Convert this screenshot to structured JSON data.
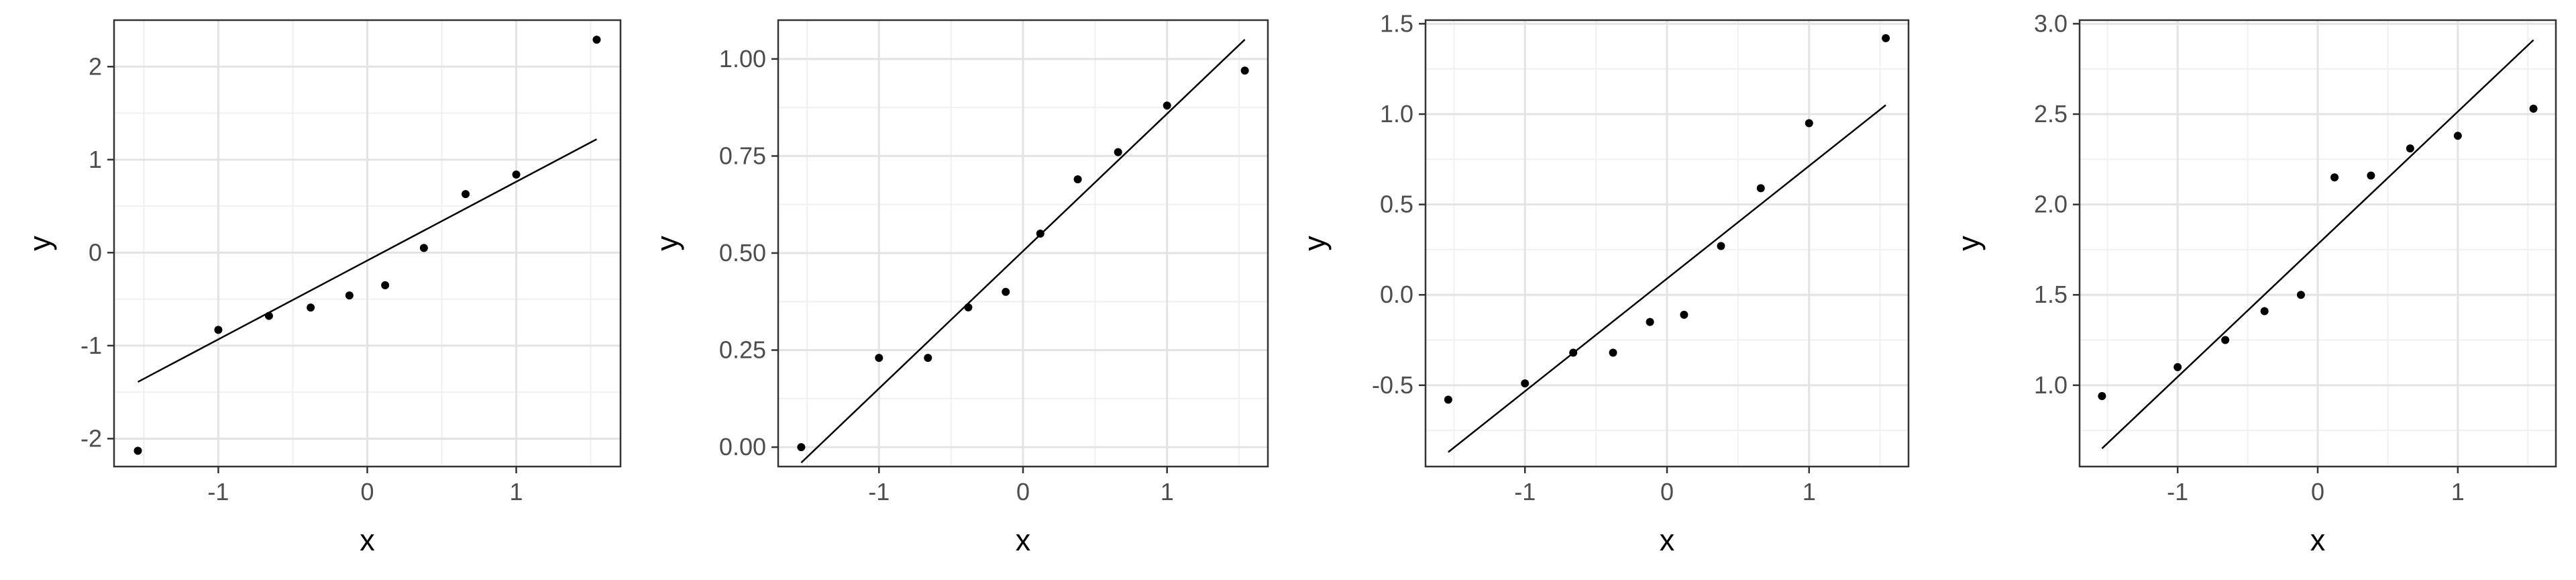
{
  "chart_data": [
    {
      "type": "scatter",
      "title": "",
      "xlabel": "x",
      "ylabel": "y",
      "xlim": [
        -1.7,
        1.7
      ],
      "ylim": [
        -2.3,
        2.5
      ],
      "grid": true,
      "xticks": [
        -1,
        0,
        1
      ],
      "xtick_labels": [
        "-1",
        "0",
        "1"
      ],
      "yticks": [
        -2,
        -1,
        0,
        1,
        2
      ],
      "ytick_labels": [
        "-2",
        "-1",
        "0",
        "1",
        "2"
      ],
      "points": {
        "x": [
          -1.54,
          -1.0,
          -0.66,
          -0.38,
          -0.12,
          0.12,
          0.38,
          0.66,
          1.0,
          1.54
        ],
        "y": [
          -2.13,
          -0.83,
          -0.68,
          -0.59,
          -0.46,
          -0.35,
          0.05,
          0.63,
          0.84,
          2.29
        ]
      },
      "fit_line": {
        "x": [
          -1.54,
          1.54
        ],
        "y": [
          -1.39,
          1.22
        ]
      }
    },
    {
      "type": "scatter",
      "title": "",
      "xlabel": "x",
      "ylabel": "y",
      "xlim": [
        -1.7,
        1.7
      ],
      "ylim": [
        -0.05,
        1.1
      ],
      "grid": true,
      "xticks": [
        -1,
        0,
        1
      ],
      "xtick_labels": [
        "-1",
        "0",
        "1"
      ],
      "yticks": [
        0.0,
        0.25,
        0.5,
        0.75,
        1.0
      ],
      "ytick_labels": [
        "0.00",
        "0.25",
        "0.50",
        "0.75",
        "1.00"
      ],
      "points": {
        "x": [
          -1.54,
          -1.0,
          -0.66,
          -0.38,
          -0.12,
          0.12,
          0.38,
          0.66,
          1.0,
          1.54
        ],
        "y": [
          0.0,
          0.23,
          0.23,
          0.36,
          0.4,
          0.55,
          0.69,
          0.76,
          0.88,
          0.97
        ]
      },
      "fit_line": {
        "x": [
          -1.54,
          1.54
        ],
        "y": [
          -0.04,
          1.05
        ]
      }
    },
    {
      "type": "scatter",
      "title": "",
      "xlabel": "x",
      "ylabel": "y",
      "xlim": [
        -1.7,
        1.7
      ],
      "ylim": [
        -0.95,
        1.52
      ],
      "grid": true,
      "xticks": [
        -1,
        0,
        1
      ],
      "xtick_labels": [
        "-1",
        "0",
        "1"
      ],
      "yticks": [
        -0.5,
        0.0,
        0.5,
        1.0,
        1.5
      ],
      "ytick_labels": [
        "-0.5",
        "0.0",
        "0.5",
        "1.0",
        "1.5"
      ],
      "points": {
        "x": [
          -1.54,
          -1.0,
          -0.66,
          -0.38,
          -0.12,
          0.12,
          0.38,
          0.66,
          1.0,
          1.54
        ],
        "y": [
          -0.58,
          -0.49,
          -0.32,
          -0.32,
          -0.15,
          -0.11,
          0.27,
          0.59,
          0.95,
          1.42
        ]
      },
      "fit_line": {
        "x": [
          -1.54,
          1.54
        ],
        "y": [
          -0.87,
          1.05
        ]
      }
    },
    {
      "type": "scatter",
      "title": "",
      "xlabel": "x",
      "ylabel": "y",
      "xlim": [
        -1.7,
        1.7
      ],
      "ylim": [
        0.55,
        3.02
      ],
      "grid": true,
      "xticks": [
        -1,
        0,
        1
      ],
      "xtick_labels": [
        "-1",
        "0",
        "1"
      ],
      "yticks": [
        1.0,
        1.5,
        2.0,
        2.5,
        3.0
      ],
      "ytick_labels": [
        "1.0",
        "1.5",
        "2.0",
        "2.5",
        "3.0"
      ],
      "points": {
        "x": [
          -1.54,
          -1.0,
          -0.66,
          -0.38,
          -0.12,
          0.12,
          0.38,
          0.66,
          1.0,
          1.54
        ],
        "y": [
          0.94,
          1.1,
          1.25,
          1.41,
          1.5,
          2.15,
          2.16,
          2.31,
          2.38,
          2.53
        ]
      },
      "fit_line": {
        "x": [
          -1.54,
          1.54
        ],
        "y": [
          0.65,
          2.91
        ]
      }
    }
  ]
}
